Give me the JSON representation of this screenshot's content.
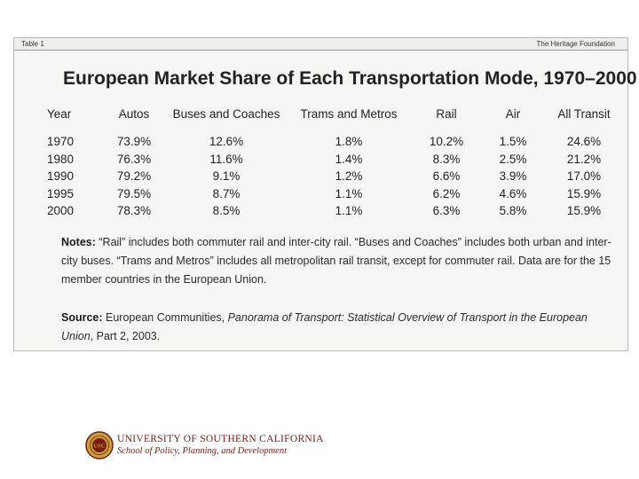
{
  "header": {
    "tab_label": "Table 1",
    "source_org": "The Heritage Foundation"
  },
  "chart_data": {
    "type": "table",
    "title": "European Market Share of Each Transportation Mode, 1970–2000",
    "columns": [
      "Year",
      "Autos",
      "Buses and Coaches",
      "Trams and Metros",
      "Rail",
      "Air",
      "All Transit"
    ],
    "rows": [
      [
        "1970",
        "73.9%",
        "12.6%",
        "1.8%",
        "10.2%",
        "1.5%",
        "24.6%"
      ],
      [
        "1980",
        "76.3%",
        "11.6%",
        "1.4%",
        "8.3%",
        "2.5%",
        "21.2%"
      ],
      [
        "1990",
        "79.2%",
        "9.1%",
        "1.2%",
        "6.6%",
        "3.9%",
        "17.0%"
      ],
      [
        "1995",
        "79.5%",
        "8.7%",
        "1.1%",
        "6.2%",
        "4.6%",
        "15.9%"
      ],
      [
        "2000",
        "78.3%",
        "8.5%",
        "1.1%",
        "6.3%",
        "5.8%",
        "15.9%"
      ]
    ]
  },
  "notes": {
    "label": "Notes:",
    "text": " “Rail” includes both commuter rail and inter-city rail. “Buses and Coaches” includes both urban and inter-city buses. “Trams and Metros” includes all metropolitan rail transit, except for commuter rail. Data are for the 15 member countries in the European Union."
  },
  "source": {
    "label": "Source:",
    "text_before": " European Communities, ",
    "publication": "Panorama of Transport: Statistical Overview of Transport in the European Union",
    "text_after": ", Part 2, 2003."
  },
  "footer": {
    "university": "UNIVERSITY OF SOUTHERN CALIFORNIA",
    "school": "School of Policy, Planning, and Development",
    "seal_text": "USC"
  },
  "colors": {
    "usc_cardinal": "#7a1b14",
    "usc_gold": "#c9a13b"
  }
}
